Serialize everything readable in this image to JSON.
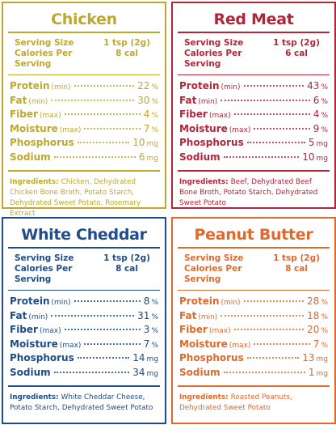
{
  "panels": [
    {
      "title": "Chicken",
      "color": "#bfa82e",
      "serving": {
        "label": "Serving Size",
        "value": "1 tsp (2g)"
      },
      "calories": {
        "label": "Calories Per Serving",
        "value": "8 cal"
      },
      "nutrients": [
        {
          "name": "Protein",
          "qualifier": "(min)",
          "value": "22",
          "unit": "%"
        },
        {
          "name": "Fat",
          "qualifier": "(min)",
          "value": "30",
          "unit": "%"
        },
        {
          "name": "Fiber",
          "qualifier": "(max)",
          "value": "4",
          "unit": "%"
        },
        {
          "name": "Moisture",
          "qualifier": "(max)",
          "value": "7",
          "unit": "%"
        },
        {
          "name": "Phosphorus",
          "qualifier": null,
          "value": "10",
          "unit": "mg"
        },
        {
          "name": "Sodium",
          "qualifier": null,
          "value": "6",
          "unit": "mg"
        }
      ],
      "ingredients": {
        "label": "Ingredients:",
        "text": "Chicken, Dehydrated Chicken Bone Broth, Potato Starch, Dehydrated Sweet Potato, Rosemary Extract"
      }
    },
    {
      "title": "Red Meat",
      "color": "#b3263a",
      "serving": {
        "label": "Serving Size",
        "value": "1 tsp (2g)"
      },
      "calories": {
        "label": "Calories Per Serving",
        "value": "6 cal"
      },
      "nutrients": [
        {
          "name": "Protein",
          "qualifier": "(min)",
          "value": "43",
          "unit": "%"
        },
        {
          "name": "Fat",
          "qualifier": "(min)",
          "value": "6",
          "unit": "%"
        },
        {
          "name": "Fiber",
          "qualifier": "(max)",
          "value": "4",
          "unit": "%"
        },
        {
          "name": "Moisture",
          "qualifier": "(max)",
          "value": "9",
          "unit": "%"
        },
        {
          "name": "Phosphorus",
          "qualifier": null,
          "value": "5",
          "unit": "mg"
        },
        {
          "name": "Sodium",
          "qualifier": null,
          "value": "10",
          "unit": "mg"
        }
      ],
      "ingredients": {
        "label": "Ingredients:",
        "text": "Beef, Dehydrated Beef Bone Broth, Potato Starch, Dehydrated Sweet Potato"
      }
    },
    {
      "title": "White Cheddar",
      "color": "#1f4c8a",
      "serving": {
        "label": "Serving Size",
        "value": "1 tsp (2g)"
      },
      "calories": {
        "label": "Calories Per Serving",
        "value": "8 cal"
      },
      "nutrients": [
        {
          "name": "Protein",
          "qualifier": "(min)",
          "value": "8",
          "unit": "%"
        },
        {
          "name": "Fat",
          "qualifier": "(min)",
          "value": "31",
          "unit": "%"
        },
        {
          "name": "Fiber",
          "qualifier": "(max)",
          "value": "3",
          "unit": "%"
        },
        {
          "name": "Moisture",
          "qualifier": "(max)",
          "value": "7",
          "unit": "%"
        },
        {
          "name": "Phosphorus",
          "qualifier": null,
          "value": "14",
          "unit": "mg"
        },
        {
          "name": "Sodium",
          "qualifier": null,
          "value": "34",
          "unit": "mg"
        }
      ],
      "ingredients": {
        "label": "Ingredients:",
        "text": "White Cheddar Cheese, Potato Starch, Dehydrated Sweet Potato"
      }
    },
    {
      "title": "Peanut Butter",
      "color": "#e0692c",
      "serving": {
        "label": "Serving Size",
        "value": "1 tsp (2g)"
      },
      "calories": {
        "label": "Calories Per Serving",
        "value": "8 cal"
      },
      "nutrients": [
        {
          "name": "Protein",
          "qualifier": "(min)",
          "value": "28",
          "unit": "%"
        },
        {
          "name": "Fat",
          "qualifier": "(min)",
          "value": "18",
          "unit": "%"
        },
        {
          "name": "Fiber",
          "qualifier": "(max)",
          "value": "20",
          "unit": "%"
        },
        {
          "name": "Moisture",
          "qualifier": "(max)",
          "value": "7",
          "unit": "%"
        },
        {
          "name": "Phosphorus",
          "qualifier": null,
          "value": "13",
          "unit": "mg"
        },
        {
          "name": "Sodium",
          "qualifier": null,
          "value": "1",
          "unit": "mg"
        }
      ],
      "ingredients": {
        "label": "Ingredients:",
        "text": "Roasted Peanuts, Dehydrated Sweet Potato"
      }
    }
  ]
}
